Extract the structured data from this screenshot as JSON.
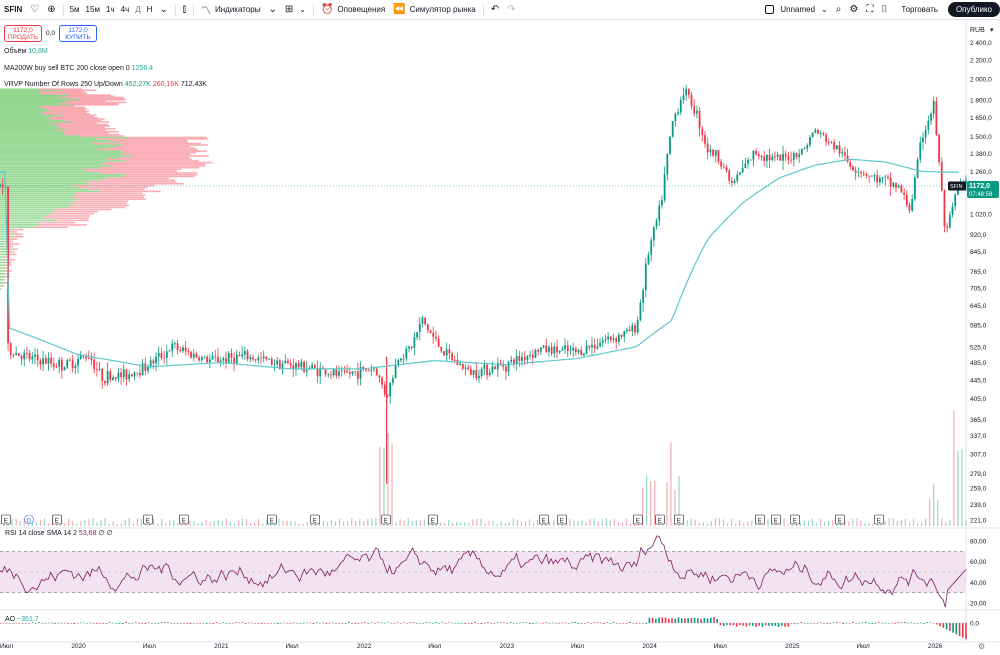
{
  "toolbar": {
    "symbol": "SFIN",
    "intervals": [
      "5м",
      "15м",
      "1ч",
      "4ч",
      "Д",
      "Н"
    ],
    "indicators_label": "Индикаторы",
    "alerts_label": "Оповещения",
    "replay_label": "Симулятор рынка",
    "layout_name": "Unnamed",
    "trade_label": "Торговать",
    "publish_label": "Опублико"
  },
  "legend": {
    "sell_price": "1172,0",
    "sell_label": "ПРОДАТЬ",
    "spread": "0,0",
    "buy_price": "1172,0",
    "buy_label": "КУПИТЬ",
    "volume_label": "Объём",
    "volume_value": "10,8M",
    "ma_label": "MA200W buy sell BTC 200 close open 0",
    "ma_value": "1256,4",
    "vrvp_label": "VRVP Number Of Rows 250 Up/Down",
    "vrvp_up": "452,27K",
    "vrvp_down": "260,16K",
    "vrvp_total": "712,43K",
    "rsi_label": "RSI 14 close SMA 14 2",
    "rsi_value": "53,68",
    "rsi_extra": "∅ ∅",
    "ao_label": "AO",
    "ao_value": "−351,7"
  },
  "colors": {
    "up": "#089981",
    "down": "#f23645",
    "ma": "#5ec8cc",
    "rsi": "#7e1f60",
    "rsi_band": "#f3e3ef",
    "vp_up": "#7fd07c",
    "vp_down": "#f79aa3"
  },
  "chart_data": {
    "type": "candlestick",
    "currency": "RUB",
    "current_price_label": "1172,0",
    "countdown": "07:48:58",
    "price_ticks": [
      "2 400,0",
      "2 200,0",
      "2 000,0",
      "1 800,0",
      "1 650,0",
      "1 500,0",
      "1 380,0",
      "1 260,0",
      "1 020,0",
      "920,0",
      "845,0",
      "765,0",
      "705,0",
      "645,0",
      "585,0",
      "525,0",
      "485,0",
      "445,0",
      "405,0",
      "365,0",
      "337,0",
      "307,0",
      "279,0",
      "259,0",
      "239,0",
      "221,0"
    ],
    "time_labels": [
      "Июл",
      "2020",
      "Июл",
      "2021",
      "Июл",
      "2022",
      "Июл",
      "2023",
      "Июл",
      "2024",
      "Июл",
      "2025",
      "Июл",
      "2026"
    ],
    "price_key": [
      [
        "2019-07",
        520
      ],
      [
        "2019-09",
        495
      ],
      [
        "2019-12",
        478
      ],
      [
        "2020-02",
        505
      ],
      [
        "2020-03",
        452
      ],
      [
        "2020-05",
        455
      ],
      [
        "2020-07",
        480
      ],
      [
        "2020-09",
        525
      ],
      [
        "2020-12",
        490
      ],
      [
        "2021-03",
        500
      ],
      [
        "2021-06",
        485
      ],
      [
        "2021-09",
        470
      ],
      [
        "2021-11",
        455
      ],
      [
        "2022-02",
        472
      ],
      [
        "2022-03",
        410
      ],
      [
        "2022-04",
        500
      ],
      [
        "2022-05",
        520
      ],
      [
        "2022-06",
        600
      ],
      [
        "2022-07",
        545
      ],
      [
        "2022-08",
        505
      ],
      [
        "2022-10",
        462
      ],
      [
        "2023-01",
        480
      ],
      [
        "2023-04",
        520
      ],
      [
        "2023-07",
        510
      ],
      [
        "2023-09",
        540
      ],
      [
        "2023-11",
        560
      ],
      [
        "2023-12",
        580
      ],
      [
        "2024-01",
        840
      ],
      [
        "2024-02",
        1050
      ],
      [
        "2024-03",
        1600
      ],
      [
        "2024-04",
        1900
      ],
      [
        "2024-05",
        1700
      ],
      [
        "2024-06",
        1400
      ],
      [
        "2024-07",
        1350
      ],
      [
        "2024-08",
        1180
      ],
      [
        "2024-10",
        1390
      ],
      [
        "2024-12",
        1330
      ],
      [
        "2025-02",
        1400
      ],
      [
        "2025-03",
        1550
      ],
      [
        "2025-05",
        1400
      ],
      [
        "2025-06",
        1300
      ],
      [
        "2025-08",
        1220
      ],
      [
        "2025-10",
        1170
      ],
      [
        "2025-11",
        1040
      ],
      [
        "2025-12",
        1500
      ],
      [
        "2026-01",
        1760
      ],
      [
        "2026-02",
        900
      ],
      [
        "2026-03",
        1172
      ]
    ],
    "ma200w_key": [
      [
        "2019-07",
        580
      ],
      [
        "2020-01",
        505
      ],
      [
        "2020-07",
        475
      ],
      [
        "2021-01",
        485
      ],
      [
        "2021-07",
        470
      ],
      [
        "2022-01",
        470
      ],
      [
        "2022-07",
        490
      ],
      [
        "2023-01",
        480
      ],
      [
        "2023-07",
        495
      ],
      [
        "2023-12",
        525
      ],
      [
        "2024-03",
        600
      ],
      [
        "2024-06",
        900
      ],
      [
        "2024-09",
        1080
      ],
      [
        "2024-12",
        1220
      ],
      [
        "2025-03",
        1300
      ],
      [
        "2025-06",
        1340
      ],
      [
        "2025-09",
        1320
      ],
      [
        "2025-12",
        1260
      ],
      [
        "2026-02",
        1256
      ]
    ],
    "volume_spikes": [
      [
        "2022-03",
        0.55
      ],
      [
        "2024-01",
        0.35
      ],
      [
        "2024-03",
        0.45
      ],
      [
        "2026-01",
        0.3
      ],
      [
        "2026-03",
        0.9
      ]
    ],
    "rsi": {
      "ticks": [
        "80,00",
        "60,00",
        "40,00",
        "20,00"
      ],
      "upper": 70,
      "lower": 30,
      "current": 53.68
    },
    "ao": {
      "ticks": [
        "0,0"
      ],
      "current": -351.7
    },
    "event_markers": [
      "E",
      "D",
      "E",
      "E",
      "E",
      "E",
      "E",
      "E",
      "E",
      "E",
      "E",
      "E",
      "E",
      "E",
      "E",
      "E",
      "E",
      "E",
      "E"
    ]
  }
}
